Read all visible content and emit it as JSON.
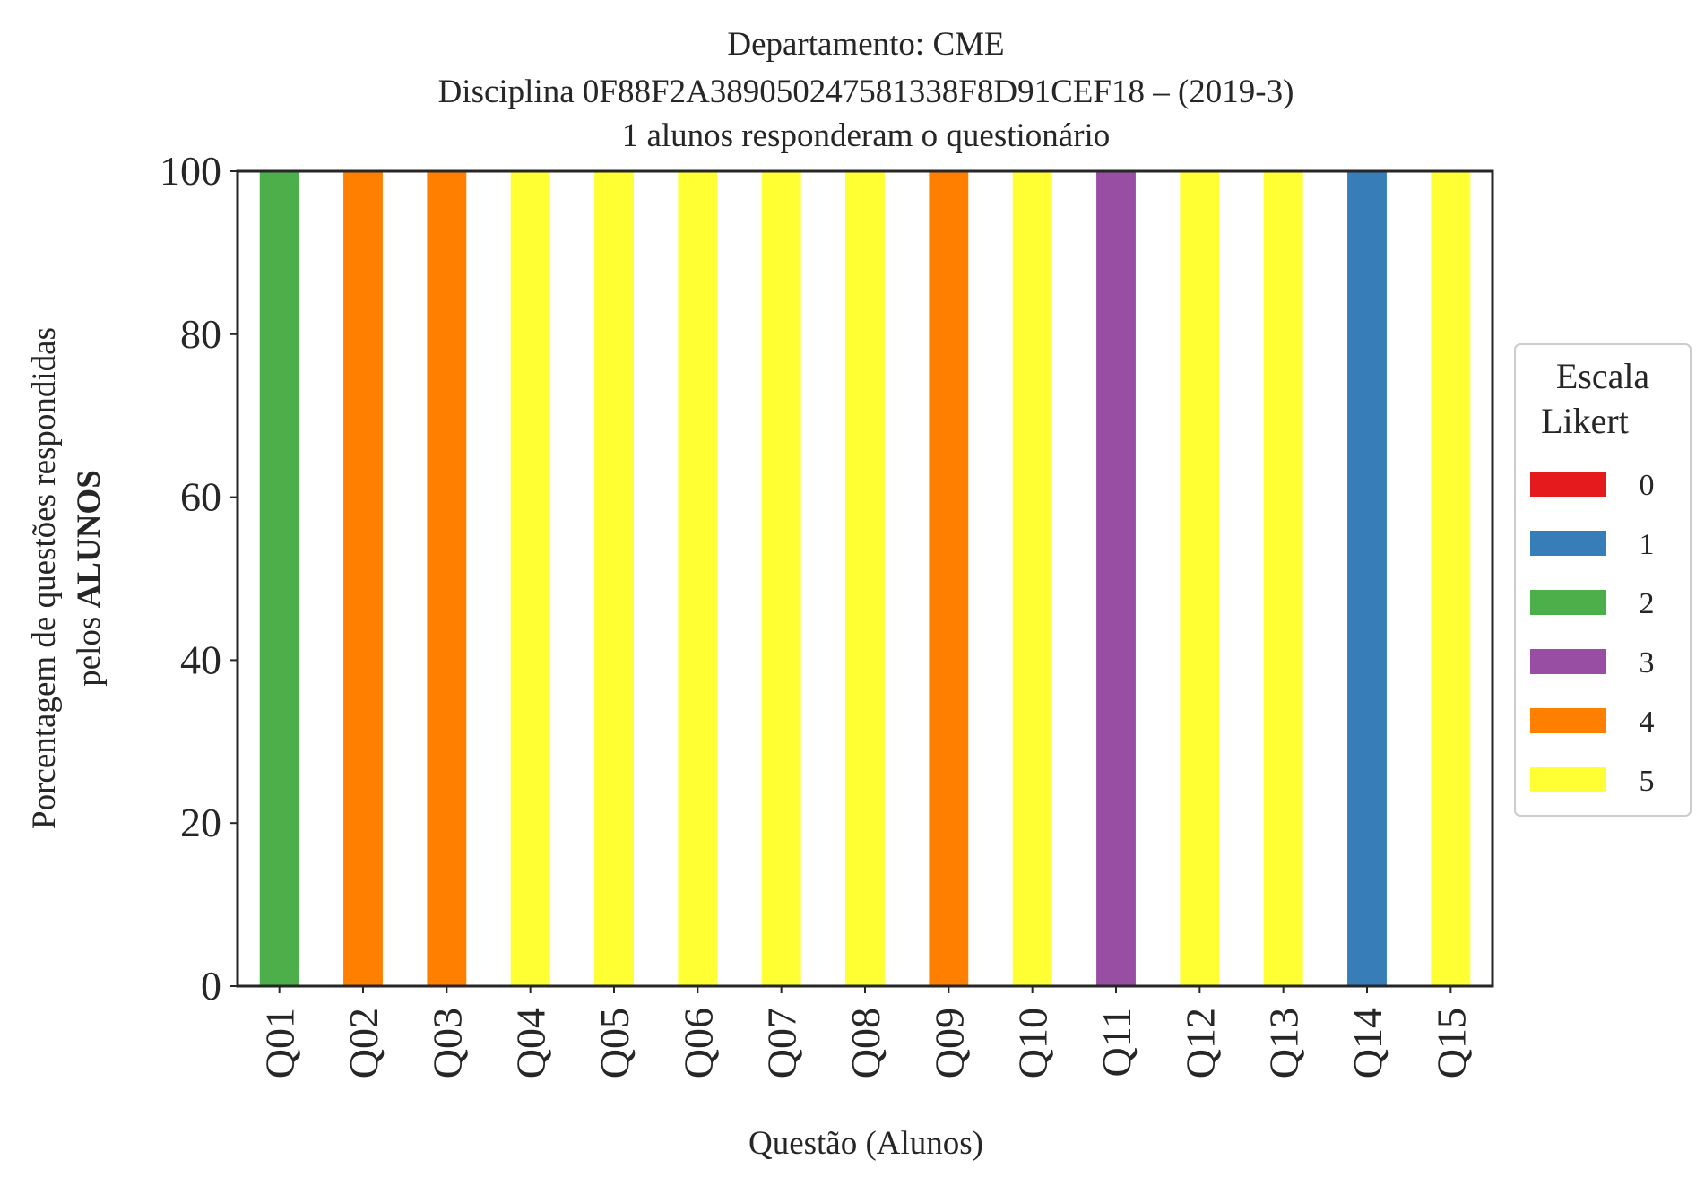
{
  "chart_data": {
    "type": "bar",
    "stacked": true,
    "title_lines": [
      "Departamento: CME",
      "Disciplina 0F88F2A389050247581338F8D91CEF18 – (2019-3)",
      "1 alunos responderam o questionário"
    ],
    "xlabel": "Questão (Alunos)",
    "ylabel_line1": "Porcentagem de questões respondidas",
    "ylabel_line2_prefix": "pelos ",
    "ylabel_line2_bold": "ALUNOS",
    "ylim": [
      0,
      100
    ],
    "yticks": [
      "0",
      "20",
      "40",
      "60",
      "80",
      "100"
    ],
    "grid": false,
    "categories": [
      "Q01",
      "Q02",
      "Q03",
      "Q04",
      "Q05",
      "Q06",
      "Q07",
      "Q08",
      "Q09",
      "Q10",
      "Q11",
      "Q12",
      "Q13",
      "Q14",
      "Q15"
    ],
    "series": [
      {
        "name": "0",
        "color": "#e41a1c",
        "values": [
          0,
          0,
          0,
          0,
          0,
          0,
          0,
          0,
          0,
          0,
          0,
          0,
          0,
          0,
          0
        ]
      },
      {
        "name": "1",
        "color": "#377eb8",
        "values": [
          0,
          0,
          0,
          0,
          0,
          0,
          0,
          0,
          0,
          0,
          0,
          0,
          0,
          100,
          0
        ]
      },
      {
        "name": "2",
        "color": "#4daf4a",
        "values": [
          100,
          0,
          0,
          0,
          0,
          0,
          0,
          0,
          0,
          0,
          0,
          0,
          0,
          0,
          0
        ]
      },
      {
        "name": "3",
        "color": "#984ea3",
        "values": [
          0,
          0,
          0,
          0,
          0,
          0,
          0,
          0,
          0,
          0,
          100,
          0,
          0,
          0,
          0
        ]
      },
      {
        "name": "4",
        "color": "#ff7f00",
        "values": [
          0,
          100,
          100,
          0,
          0,
          0,
          0,
          0,
          100,
          0,
          0,
          0,
          0,
          0,
          0
        ]
      },
      {
        "name": "5",
        "color": "#ffff33",
        "values": [
          0,
          0,
          0,
          100,
          100,
          100,
          100,
          100,
          0,
          100,
          0,
          100,
          100,
          0,
          100
        ]
      }
    ],
    "legend": {
      "title_lines": [
        "Escala",
        "Likert"
      ],
      "placement": "right-center"
    }
  }
}
